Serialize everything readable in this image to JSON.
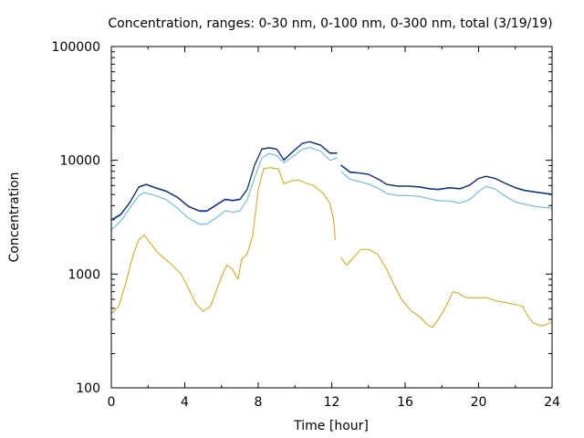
{
  "chart_data": {
    "type": "line",
    "title": "Concentration, ranges: 0-30 nm, 0-100 nm, 0-300 nm, total (3/19/19)",
    "xlabel": "Time [hour]",
    "ylabel": "Concentration",
    "xlim": [
      0,
      24
    ],
    "ylim": [
      100,
      100000
    ],
    "yscale": "log",
    "xticks": [
      "0",
      "4",
      "8",
      "12",
      "16",
      "20",
      "24"
    ],
    "yticks": [
      "100",
      "1000",
      "10000",
      "100000"
    ],
    "grid": false,
    "legend": "none",
    "series": [
      {
        "color": "#dca000",
        "segments": [
          [
            [
              0,
              450
            ],
            [
              0.4,
              520
            ],
            [
              0.8,
              850
            ],
            [
              1.2,
              1500
            ],
            [
              1.5,
              2000
            ],
            [
              1.8,
              2200
            ],
            [
              2.2,
              1800
            ],
            [
              2.6,
              1500
            ],
            [
              3.2,
              1250
            ],
            [
              3.8,
              1000
            ],
            [
              4.2,
              750
            ],
            [
              4.6,
              550
            ],
            [
              5.0,
              470
            ],
            [
              5.4,
              520
            ],
            [
              5.7,
              700
            ],
            [
              6.0,
              950
            ],
            [
              6.3,
              1200
            ],
            [
              6.6,
              1100
            ],
            [
              6.9,
              900
            ],
            [
              7.1,
              1350
            ],
            [
              7.4,
              1500
            ],
            [
              7.7,
              2200
            ],
            [
              8.0,
              5500
            ],
            [
              8.3,
              8500
            ],
            [
              8.7,
              8600
            ],
            [
              9.1,
              8400
            ],
            [
              9.4,
              6200
            ],
            [
              9.8,
              6600
            ],
            [
              10.2,
              6700
            ],
            [
              10.6,
              6300
            ],
            [
              11.0,
              6000
            ],
            [
              11.5,
              5200
            ],
            [
              11.9,
              4200
            ],
            [
              12.1,
              3000
            ],
            [
              12.2,
              2000
            ]
          ],
          [
            [
              12.5,
              1400
            ],
            [
              12.8,
              1200
            ],
            [
              13.2,
              1400
            ],
            [
              13.6,
              1650
            ],
            [
              14.0,
              1650
            ],
            [
              14.5,
              1500
            ],
            [
              15.0,
              1100
            ],
            [
              15.4,
              800
            ],
            [
              15.8,
              600
            ],
            [
              16.3,
              480
            ],
            [
              16.8,
              420
            ],
            [
              17.2,
              360
            ],
            [
              17.5,
              340
            ],
            [
              17.9,
              420
            ],
            [
              18.3,
              550
            ],
            [
              18.6,
              700
            ],
            [
              18.9,
              680
            ],
            [
              19.3,
              620
            ],
            [
              19.8,
              620
            ],
            [
              20.4,
              620
            ],
            [
              21.0,
              580
            ],
            [
              21.5,
              560
            ],
            [
              22.0,
              540
            ],
            [
              22.4,
              520
            ],
            [
              22.7,
              420
            ],
            [
              23.0,
              370
            ],
            [
              23.4,
              350
            ],
            [
              23.7,
              360
            ],
            [
              24,
              380
            ]
          ]
        ]
      },
      {
        "color": "#56b4e9",
        "segments": [
          [
            [
              0,
              2450
            ],
            [
              0.5,
              2900
            ],
            [
              1.0,
              3800
            ],
            [
              1.5,
              4900
            ],
            [
              1.8,
              5200
            ],
            [
              2.4,
              4900
            ],
            [
              3.0,
              4500
            ],
            [
              3.6,
              3800
            ],
            [
              4.2,
              3100
            ],
            [
              4.8,
              2750
            ],
            [
              5.2,
              2750
            ],
            [
              5.8,
              3200
            ],
            [
              6.2,
              3600
            ],
            [
              6.6,
              3500
            ],
            [
              7.0,
              3600
            ],
            [
              7.4,
              4500
            ],
            [
              7.8,
              7000
            ],
            [
              8.2,
              10500
            ],
            [
              8.6,
              11500
            ],
            [
              9.0,
              11000
            ],
            [
              9.4,
              9500
            ],
            [
              9.8,
              10500
            ],
            [
              10.4,
              12500
            ],
            [
              10.8,
              13000
            ],
            [
              11.4,
              12000
            ],
            [
              11.9,
              10000
            ],
            [
              12.3,
              10500
            ]
          ],
          [
            [
              12.5,
              8000
            ],
            [
              13.0,
              6800
            ],
            [
              13.5,
              6500
            ],
            [
              14.0,
              6200
            ],
            [
              14.6,
              5600
            ],
            [
              15.0,
              5100
            ],
            [
              15.6,
              4900
            ],
            [
              16.2,
              4900
            ],
            [
              16.8,
              4800
            ],
            [
              17.3,
              4600
            ],
            [
              17.8,
              4400
            ],
            [
              18.4,
              4400
            ],
            [
              19.0,
              4200
            ],
            [
              19.5,
              4500
            ],
            [
              20.0,
              5300
            ],
            [
              20.4,
              5900
            ],
            [
              20.9,
              5600
            ],
            [
              21.4,
              4900
            ],
            [
              22.0,
              4300
            ],
            [
              22.5,
              4100
            ],
            [
              23.2,
              3900
            ],
            [
              24,
              3800
            ]
          ]
        ]
      },
      {
        "color": "#005ad8",
        "segments": [
          [
            [
              0,
              2950
            ],
            [
              0.5,
              3300
            ],
            [
              1.0,
              4200
            ],
            [
              1.5,
              5800
            ],
            [
              1.9,
              6100
            ],
            [
              2.4,
              5700
            ],
            [
              3.0,
              5300
            ],
            [
              3.6,
              4700
            ],
            [
              4.2,
              3900
            ],
            [
              4.8,
              3550
            ],
            [
              5.2,
              3550
            ],
            [
              5.8,
              4100
            ],
            [
              6.2,
              4500
            ],
            [
              6.6,
              4400
            ],
            [
              7.0,
              4500
            ],
            [
              7.4,
              5500
            ],
            [
              7.8,
              9000
            ],
            [
              8.2,
              12500
            ],
            [
              8.6,
              12800
            ],
            [
              9.0,
              12500
            ],
            [
              9.4,
              10000
            ],
            [
              9.8,
              11500
            ],
            [
              10.4,
              14000
            ],
            [
              10.8,
              14500
            ],
            [
              11.4,
              13500
            ],
            [
              11.9,
              11500
            ],
            [
              12.3,
              11500
            ]
          ],
          [
            [
              12.5,
              9000
            ],
            [
              13.0,
              7800
            ],
            [
              13.5,
              7700
            ],
            [
              14.0,
              7500
            ],
            [
              14.6,
              6700
            ],
            [
              15.0,
              6100
            ],
            [
              15.6,
              5900
            ],
            [
              16.2,
              5900
            ],
            [
              16.8,
              5800
            ],
            [
              17.3,
              5600
            ],
            [
              17.8,
              5500
            ],
            [
              18.4,
              5700
            ],
            [
              19.0,
              5600
            ],
            [
              19.5,
              6000
            ],
            [
              20.0,
              6900
            ],
            [
              20.4,
              7200
            ],
            [
              20.9,
              6900
            ],
            [
              21.4,
              6300
            ],
            [
              22.0,
              5700
            ],
            [
              22.5,
              5400
            ],
            [
              23.2,
              5200
            ],
            [
              24,
              5000
            ]
          ]
        ]
      },
      {
        "color": "#1a2a6c",
        "segments": [
          [
            [
              0,
              3000
            ],
            [
              0.5,
              3350
            ],
            [
              1.0,
              4250
            ],
            [
              1.5,
              5850
            ],
            [
              1.9,
              6150
            ],
            [
              2.4,
              5750
            ],
            [
              3.0,
              5350
            ],
            [
              3.6,
              4750
            ],
            [
              4.2,
              3950
            ],
            [
              4.8,
              3600
            ],
            [
              5.2,
              3600
            ],
            [
              5.8,
              4150
            ],
            [
              6.2,
              4550
            ],
            [
              6.6,
              4450
            ],
            [
              7.0,
              4550
            ],
            [
              7.4,
              5550
            ],
            [
              7.8,
              9100
            ],
            [
              8.2,
              12600
            ],
            [
              8.6,
              12900
            ],
            [
              9.0,
              12600
            ],
            [
              9.4,
              10100
            ],
            [
              9.8,
              11600
            ],
            [
              10.4,
              14100
            ],
            [
              10.8,
              14600
            ],
            [
              11.4,
              13600
            ],
            [
              11.9,
              11600
            ],
            [
              12.3,
              11600
            ]
          ],
          [
            [
              12.5,
              9100
            ],
            [
              13.0,
              7900
            ],
            [
              13.5,
              7750
            ],
            [
              14.0,
              7550
            ],
            [
              14.6,
              6750
            ],
            [
              15.0,
              6150
            ],
            [
              15.6,
              5950
            ],
            [
              16.2,
              5950
            ],
            [
              16.8,
              5850
            ],
            [
              17.3,
              5650
            ],
            [
              17.8,
              5550
            ],
            [
              18.4,
              5750
            ],
            [
              19.0,
              5650
            ],
            [
              19.5,
              6050
            ],
            [
              20.0,
              6950
            ],
            [
              20.4,
              7250
            ],
            [
              20.9,
              6950
            ],
            [
              21.4,
              6350
            ],
            [
              22.0,
              5750
            ],
            [
              22.5,
              5450
            ],
            [
              23.2,
              5250
            ],
            [
              24,
              5050
            ]
          ]
        ]
      }
    ]
  }
}
